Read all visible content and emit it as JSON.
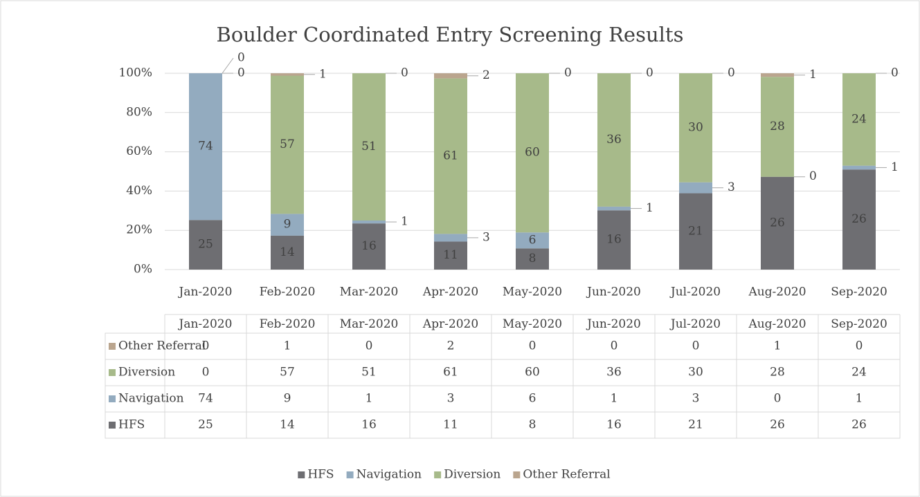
{
  "chart_data": {
    "type": "stacked_percent_bar",
    "title": "Boulder Coordinated Entry Screening Results",
    "categories": [
      "Jan-2020",
      "Feb-2020",
      "Mar-2020",
      "Apr-2020",
      "May-2020",
      "Jun-2020",
      "Jul-2020",
      "Aug-2020",
      "Sep-2020"
    ],
    "series": [
      {
        "name": "HFS",
        "color": "#6e6e72",
        "values": [
          25,
          14,
          16,
          11,
          8,
          16,
          21,
          26,
          26
        ]
      },
      {
        "name": "Navigation",
        "color": "#93abbf",
        "values": [
          74,
          9,
          1,
          3,
          6,
          1,
          3,
          0,
          1
        ]
      },
      {
        "name": "Diversion",
        "color": "#a7ba8a",
        "values": [
          0,
          57,
          51,
          61,
          60,
          36,
          30,
          28,
          24
        ]
      },
      {
        "name": "Other Referral",
        "color": "#baa58e",
        "values": [
          0,
          1,
          0,
          2,
          0,
          0,
          0,
          1,
          0
        ]
      }
    ],
    "ylim": [
      0,
      100
    ],
    "yticks": [
      {
        "value": 0,
        "label": "0%"
      },
      {
        "value": 20,
        "label": "20%"
      },
      {
        "value": 40,
        "label": "40%"
      },
      {
        "value": 60,
        "label": "60%"
      },
      {
        "value": 80,
        "label": "80%"
      },
      {
        "value": 100,
        "label": "100%"
      }
    ],
    "grid": true,
    "legend": "bottom",
    "data_table": true
  }
}
